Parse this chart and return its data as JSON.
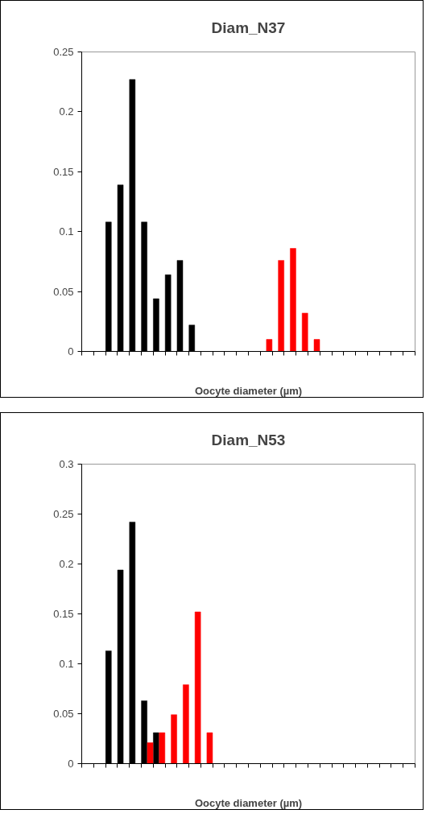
{
  "chart_data": [
    {
      "type": "bar",
      "title": "Diam_N37",
      "xlabel": "Oocyte diameter (µm)",
      "categories": [
        null,
        null,
        null,
        null,
        null,
        null,
        null,
        null,
        null,
        null,
        null,
        null,
        null,
        null,
        null,
        null,
        null,
        null,
        null,
        null,
        null,
        null,
        null,
        null,
        null,
        null,
        null,
        null
      ],
      "series": [
        {
          "color": "#000000",
          "values": [
            null,
            null,
            0.108,
            0.139,
            0.227,
            0.108,
            0.044,
            0.064,
            0.076,
            0.022,
            null,
            null,
            null,
            null,
            null,
            null,
            null,
            null,
            null,
            null,
            null,
            null,
            null,
            null,
            null,
            null,
            null,
            null
          ]
        },
        {
          "color": "#ff0000",
          "values": [
            null,
            null,
            null,
            null,
            null,
            null,
            null,
            null,
            null,
            null,
            null,
            null,
            null,
            null,
            null,
            0.01,
            0.076,
            0.086,
            0.032,
            0.01,
            null,
            null,
            null,
            null,
            null,
            null,
            null,
            null
          ]
        }
      ],
      "ylim": [
        0,
        0.25
      ],
      "yticks": [
        0,
        0.05,
        0.1,
        0.15,
        0.2,
        0.25
      ],
      "grid": false,
      "tick_labels": "y"
    },
    {
      "type": "bar",
      "title": "Diam_N53",
      "xlabel": "Oocyte diameter (µm)",
      "categories": [
        null,
        null,
        null,
        null,
        null,
        null,
        null,
        null,
        null,
        null,
        null,
        null,
        null,
        null,
        null,
        null,
        null,
        null,
        null,
        null,
        null,
        null,
        null,
        null,
        null,
        null,
        null,
        null
      ],
      "series": [
        {
          "color": "#000000",
          "values": [
            null,
            null,
            0.113,
            0.194,
            0.242,
            0.063,
            0.031,
            null,
            null,
            null,
            null,
            null,
            null,
            null,
            null,
            null,
            null,
            null,
            null,
            null,
            null,
            null,
            null,
            null,
            null,
            null,
            null,
            null
          ]
        },
        {
          "color": "#ff0000",
          "values": [
            null,
            null,
            null,
            null,
            null,
            0.021,
            0.031,
            0.049,
            0.079,
            0.152,
            0.031,
            null,
            null,
            null,
            null,
            null,
            null,
            null,
            null,
            null,
            null,
            null,
            null,
            null,
            null,
            null,
            null,
            null
          ]
        }
      ],
      "ylim": [
        0,
        0.3
      ],
      "yticks": [
        0,
        0.05,
        0.1,
        0.15,
        0.2,
        0.25,
        0.3
      ],
      "grid": false,
      "tick_labels": "y"
    }
  ]
}
